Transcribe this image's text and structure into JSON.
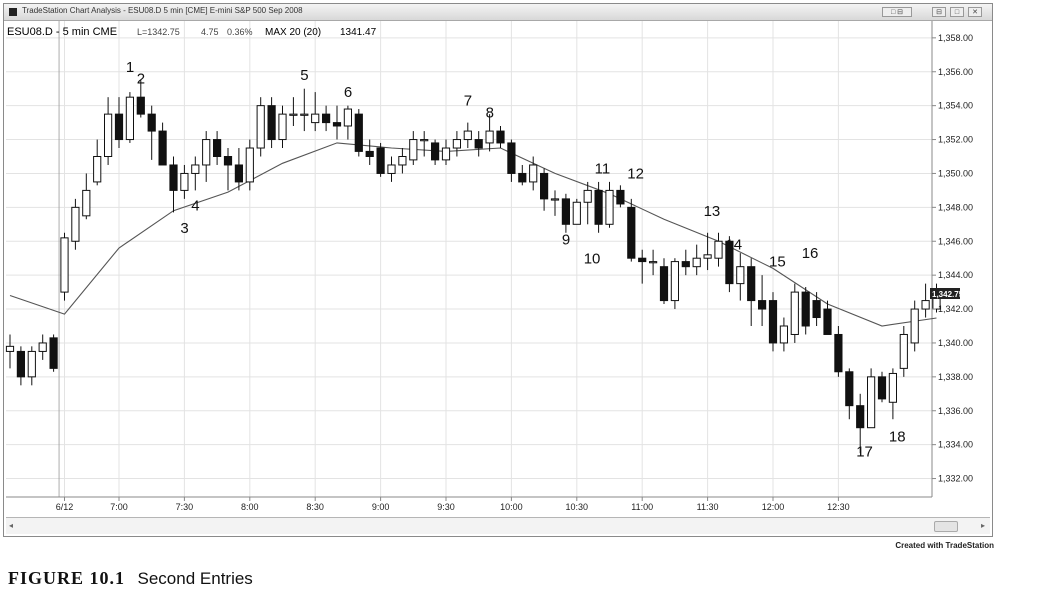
{
  "window": {
    "title": "TradeStation Chart Analysis - ESU08.D 5 min [CME] E-mini S&P 500 Sep 2008",
    "buttons": [
      "□ ⊟",
      "⊟",
      "□",
      "✕"
    ]
  },
  "credit": "Created with TradeStation",
  "figure": {
    "number": "FIGURE 10.1",
    "title": "Second Entries"
  },
  "chart_data": {
    "type": "candlestick",
    "symbol": "ESU08.D - 5 min CME",
    "last": "L=1342.75",
    "change": "4.75",
    "change_pct": "0.36%",
    "indicator": "MAX 20 (20)",
    "indicator_value": "1341.47",
    "last_price_tag": "1,342.75",
    "ylim": [
      1331,
      1359
    ],
    "y_ticks": [
      1332,
      1334,
      1336,
      1338,
      1340,
      1342,
      1344,
      1346,
      1348,
      1350,
      1352,
      1354,
      1356,
      1358
    ],
    "y_tick_labels": [
      "1,332.00",
      "1,334.00",
      "1,336.00",
      "1,338.00",
      "1,340.00",
      "1,342.00",
      "1,344.00",
      "1,346.00",
      "1,348.00",
      "1,350.00",
      "1,352.00",
      "1,354.00",
      "1,356.00",
      "1,358.00"
    ],
    "x_ticks": [
      {
        "bar": 5,
        "label": "6/12"
      },
      {
        "bar": 10,
        "label": "7:00"
      },
      {
        "bar": 16,
        "label": "7:30"
      },
      {
        "bar": 22,
        "label": "8:00"
      },
      {
        "bar": 28,
        "label": "8:30"
      },
      {
        "bar": 34,
        "label": "9:00"
      },
      {
        "bar": 40,
        "label": "9:30"
      },
      {
        "bar": 46,
        "label": "10:00"
      },
      {
        "bar": 52,
        "label": "10:30"
      },
      {
        "bar": 58,
        "label": "11:00"
      },
      {
        "bar": 64,
        "label": "11:30"
      },
      {
        "bar": 70,
        "label": "12:00"
      },
      {
        "bar": 76,
        "label": "12:30"
      }
    ],
    "session_break_bar": 5,
    "candles": [
      {
        "o": 1339.5,
        "h": 1340.5,
        "l": 1338.5,
        "c": 1339.8
      },
      {
        "o": 1339.5,
        "h": 1339.8,
        "l": 1337.5,
        "c": 1338.0
      },
      {
        "o": 1338.0,
        "h": 1339.8,
        "l": 1337.5,
        "c": 1339.5
      },
      {
        "o": 1339.5,
        "h": 1340.5,
        "l": 1339.0,
        "c": 1340.0
      },
      {
        "o": 1340.3,
        "h": 1340.5,
        "l": 1338.3,
        "c": 1338.5
      },
      {
        "o": 1343.0,
        "h": 1346.5,
        "l": 1342.5,
        "c": 1346.2
      },
      {
        "o": 1346.0,
        "h": 1348.5,
        "l": 1345.5,
        "c": 1348.0
      },
      {
        "o": 1347.5,
        "h": 1350.0,
        "l": 1347.3,
        "c": 1349.0
      },
      {
        "o": 1349.5,
        "h": 1352.0,
        "l": 1349.3,
        "c": 1351.0
      },
      {
        "o": 1351.0,
        "h": 1354.5,
        "l": 1350.5,
        "c": 1353.5
      },
      {
        "o": 1353.5,
        "h": 1354.5,
        "l": 1351.5,
        "c": 1352.0
      },
      {
        "o": 1352.0,
        "h": 1354.8,
        "l": 1351.8,
        "c": 1354.5
      },
      {
        "o": 1354.5,
        "h": 1355.5,
        "l": 1353.3,
        "c": 1353.5
      },
      {
        "o": 1353.5,
        "h": 1354.0,
        "l": 1350.8,
        "c": 1352.5
      },
      {
        "o": 1352.5,
        "h": 1353.0,
        "l": 1350.5,
        "c": 1350.5
      },
      {
        "o": 1350.5,
        "h": 1351.0,
        "l": 1347.7,
        "c": 1349.0
      },
      {
        "o": 1349.0,
        "h": 1350.5,
        "l": 1348.5,
        "c": 1350.0
      },
      {
        "o": 1350.0,
        "h": 1351.0,
        "l": 1349.0,
        "c": 1350.5
      },
      {
        "o": 1350.5,
        "h": 1352.5,
        "l": 1349.5,
        "c": 1352.0
      },
      {
        "o": 1352.0,
        "h": 1352.5,
        "l": 1350.5,
        "c": 1351.0
      },
      {
        "o": 1351.0,
        "h": 1351.5,
        "l": 1349.0,
        "c": 1350.5
      },
      {
        "o": 1350.5,
        "h": 1351.5,
        "l": 1349.0,
        "c": 1349.5
      },
      {
        "o": 1349.5,
        "h": 1352.0,
        "l": 1349.0,
        "c": 1351.5
      },
      {
        "o": 1351.5,
        "h": 1354.5,
        "l": 1351.0,
        "c": 1354.0
      },
      {
        "o": 1354.0,
        "h": 1354.5,
        "l": 1351.5,
        "c": 1352.0
      },
      {
        "o": 1352.0,
        "h": 1354.0,
        "l": 1351.5,
        "c": 1353.5
      },
      {
        "o": 1353.5,
        "h": 1354.5,
        "l": 1352.8,
        "c": 1353.5
      },
      {
        "o": 1353.5,
        "h": 1355.0,
        "l": 1352.5,
        "c": 1353.5
      },
      {
        "o": 1353.0,
        "h": 1354.8,
        "l": 1352.5,
        "c": 1353.5
      },
      {
        "o": 1353.5,
        "h": 1354.0,
        "l": 1352.5,
        "c": 1353.0
      },
      {
        "o": 1353.0,
        "h": 1354.0,
        "l": 1352.0,
        "c": 1352.8
      },
      {
        "o": 1352.8,
        "h": 1354.0,
        "l": 1352.0,
        "c": 1353.8
      },
      {
        "o": 1353.5,
        "h": 1353.8,
        "l": 1351.0,
        "c": 1351.3
      },
      {
        "o": 1351.3,
        "h": 1352.0,
        "l": 1350.5,
        "c": 1351.0
      },
      {
        "o": 1351.5,
        "h": 1351.8,
        "l": 1349.8,
        "c": 1350.0
      },
      {
        "o": 1350.0,
        "h": 1351.0,
        "l": 1349.5,
        "c": 1350.5
      },
      {
        "o": 1350.5,
        "h": 1351.5,
        "l": 1350.0,
        "c": 1351.0
      },
      {
        "o": 1350.8,
        "h": 1352.5,
        "l": 1350.5,
        "c": 1352.0
      },
      {
        "o": 1352.0,
        "h": 1352.5,
        "l": 1351.0,
        "c": 1352.0
      },
      {
        "o": 1351.8,
        "h": 1352.0,
        "l": 1350.5,
        "c": 1350.8
      },
      {
        "o": 1350.8,
        "h": 1352.0,
        "l": 1350.5,
        "c": 1351.5
      },
      {
        "o": 1351.5,
        "h": 1352.5,
        "l": 1351.0,
        "c": 1352.0
      },
      {
        "o": 1352.0,
        "h": 1353.0,
        "l": 1351.5,
        "c": 1352.5
      },
      {
        "o": 1352.0,
        "h": 1352.5,
        "l": 1351.0,
        "c": 1351.5
      },
      {
        "o": 1351.8,
        "h": 1353.5,
        "l": 1351.3,
        "c": 1352.5
      },
      {
        "o": 1352.5,
        "h": 1352.8,
        "l": 1351.5,
        "c": 1351.8
      },
      {
        "o": 1351.8,
        "h": 1352.0,
        "l": 1349.5,
        "c": 1350.0
      },
      {
        "o": 1350.0,
        "h": 1350.5,
        "l": 1349.3,
        "c": 1349.5
      },
      {
        "o": 1349.5,
        "h": 1351.0,
        "l": 1349.0,
        "c": 1350.5
      },
      {
        "o": 1350.0,
        "h": 1350.3,
        "l": 1347.8,
        "c": 1348.5
      },
      {
        "o": 1348.5,
        "h": 1349.0,
        "l": 1347.5,
        "c": 1348.5
      },
      {
        "o": 1348.5,
        "h": 1348.8,
        "l": 1346.5,
        "c": 1347.0
      },
      {
        "o": 1347.0,
        "h": 1348.5,
        "l": 1347.0,
        "c": 1348.3
      },
      {
        "o": 1348.3,
        "h": 1349.5,
        "l": 1347.0,
        "c": 1349.0
      },
      {
        "o": 1349.0,
        "h": 1349.5,
        "l": 1346.5,
        "c": 1347.0
      },
      {
        "o": 1347.0,
        "h": 1349.5,
        "l": 1346.8,
        "c": 1349.0
      },
      {
        "o": 1349.0,
        "h": 1349.3,
        "l": 1348.0,
        "c": 1348.2
      },
      {
        "o": 1348.0,
        "h": 1348.5,
        "l": 1344.8,
        "c": 1345.0
      },
      {
        "o": 1345.0,
        "h": 1345.5,
        "l": 1343.5,
        "c": 1344.8
      },
      {
        "o": 1344.8,
        "h": 1345.5,
        "l": 1344.0,
        "c": 1344.8
      },
      {
        "o": 1344.5,
        "h": 1345.0,
        "l": 1342.3,
        "c": 1342.5
      },
      {
        "o": 1342.5,
        "h": 1345.0,
        "l": 1342.0,
        "c": 1344.8
      },
      {
        "o": 1344.8,
        "h": 1345.5,
        "l": 1344.0,
        "c": 1344.5
      },
      {
        "o": 1344.5,
        "h": 1345.8,
        "l": 1344.0,
        "c": 1345.0
      },
      {
        "o": 1345.0,
        "h": 1346.5,
        "l": 1344.3,
        "c": 1345.2
      },
      {
        "o": 1345.0,
        "h": 1346.5,
        "l": 1344.5,
        "c": 1346.0
      },
      {
        "o": 1346.0,
        "h": 1346.3,
        "l": 1343.0,
        "c": 1343.5
      },
      {
        "o": 1343.5,
        "h": 1345.3,
        "l": 1342.5,
        "c": 1344.5
      },
      {
        "o": 1344.5,
        "h": 1345.0,
        "l": 1341.0,
        "c": 1342.5
      },
      {
        "o": 1342.5,
        "h": 1344.0,
        "l": 1341.0,
        "c": 1342.0
      },
      {
        "o": 1342.5,
        "h": 1343.0,
        "l": 1339.5,
        "c": 1340.0
      },
      {
        "o": 1340.0,
        "h": 1341.5,
        "l": 1339.5,
        "c": 1341.0
      },
      {
        "o": 1340.5,
        "h": 1343.5,
        "l": 1340.0,
        "c": 1343.0
      },
      {
        "o": 1343.0,
        "h": 1343.3,
        "l": 1340.5,
        "c": 1341.0
      },
      {
        "o": 1342.5,
        "h": 1343.0,
        "l": 1341.0,
        "c": 1341.5
      },
      {
        "o": 1342.0,
        "h": 1342.5,
        "l": 1340.5,
        "c": 1340.5
      },
      {
        "o": 1340.5,
        "h": 1341.0,
        "l": 1338.0,
        "c": 1338.3
      },
      {
        "o": 1338.3,
        "h": 1338.5,
        "l": 1335.5,
        "c": 1336.3
      },
      {
        "o": 1336.3,
        "h": 1337.0,
        "l": 1333.5,
        "c": 1335.0
      },
      {
        "o": 1335.0,
        "h": 1338.5,
        "l": 1335.0,
        "c": 1338.0
      },
      {
        "o": 1338.0,
        "h": 1338.3,
        "l": 1336.5,
        "c": 1336.7
      },
      {
        "o": 1336.5,
        "h": 1338.5,
        "l": 1335.5,
        "c": 1338.2
      },
      {
        "o": 1338.5,
        "h": 1341.0,
        "l": 1338.0,
        "c": 1340.5
      },
      {
        "o": 1340.0,
        "h": 1342.5,
        "l": 1339.5,
        "c": 1342.0
      },
      {
        "o": 1342.0,
        "h": 1343.5,
        "l": 1341.5,
        "c": 1342.5
      },
      {
        "o": 1342.0,
        "h": 1343.5,
        "l": 1341.8,
        "c": 1342.75
      }
    ],
    "moving_average": [
      [
        0,
        1342.8
      ],
      [
        5,
        1341.7
      ],
      [
        10,
        1345.6
      ],
      [
        15,
        1347.8
      ],
      [
        20,
        1348.9
      ],
      [
        25,
        1350.6
      ],
      [
        30,
        1351.8
      ],
      [
        35,
        1351.5
      ],
      [
        40,
        1351.3
      ],
      [
        45,
        1351.5
      ],
      [
        50,
        1350.0
      ],
      [
        55,
        1348.8
      ],
      [
        60,
        1347.3
      ],
      [
        65,
        1346.0
      ],
      [
        70,
        1344.4
      ],
      [
        75,
        1342.3
      ],
      [
        80,
        1341.0
      ],
      [
        85,
        1341.47
      ]
    ],
    "annotations": [
      {
        "label": "1",
        "bar": 11,
        "y": 1356.0
      },
      {
        "label": "2",
        "bar": 12,
        "y": 1355.3
      },
      {
        "label": "3",
        "bar": 16,
        "y": 1346.5
      },
      {
        "label": "4",
        "bar": 17,
        "y": 1347.8
      },
      {
        "label": "5",
        "bar": 27,
        "y": 1355.5
      },
      {
        "label": "6",
        "bar": 31,
        "y": 1354.5
      },
      {
        "label": "7",
        "bar": 42,
        "y": 1354.0
      },
      {
        "label": "8",
        "bar": 44,
        "y": 1353.3
      },
      {
        "label": "9",
        "bar": 51,
        "y": 1345.8
      },
      {
        "label": "10",
        "bar": 53,
        "y": 1344.7
      },
      {
        "label": "11",
        "bar": 54,
        "y": 1350.0
      },
      {
        "label": "12",
        "bar": 57,
        "y": 1349.7
      },
      {
        "label": "13",
        "bar": 64,
        "y": 1347.5
      },
      {
        "label": "14",
        "bar": 66,
        "y": 1345.5
      },
      {
        "label": "15",
        "bar": 70,
        "y": 1344.5
      },
      {
        "label": "16",
        "bar": 73,
        "y": 1345.0
      },
      {
        "label": "17",
        "bar": 78,
        "y": 1333.3
      },
      {
        "label": "18",
        "bar": 81,
        "y": 1334.2
      }
    ]
  }
}
